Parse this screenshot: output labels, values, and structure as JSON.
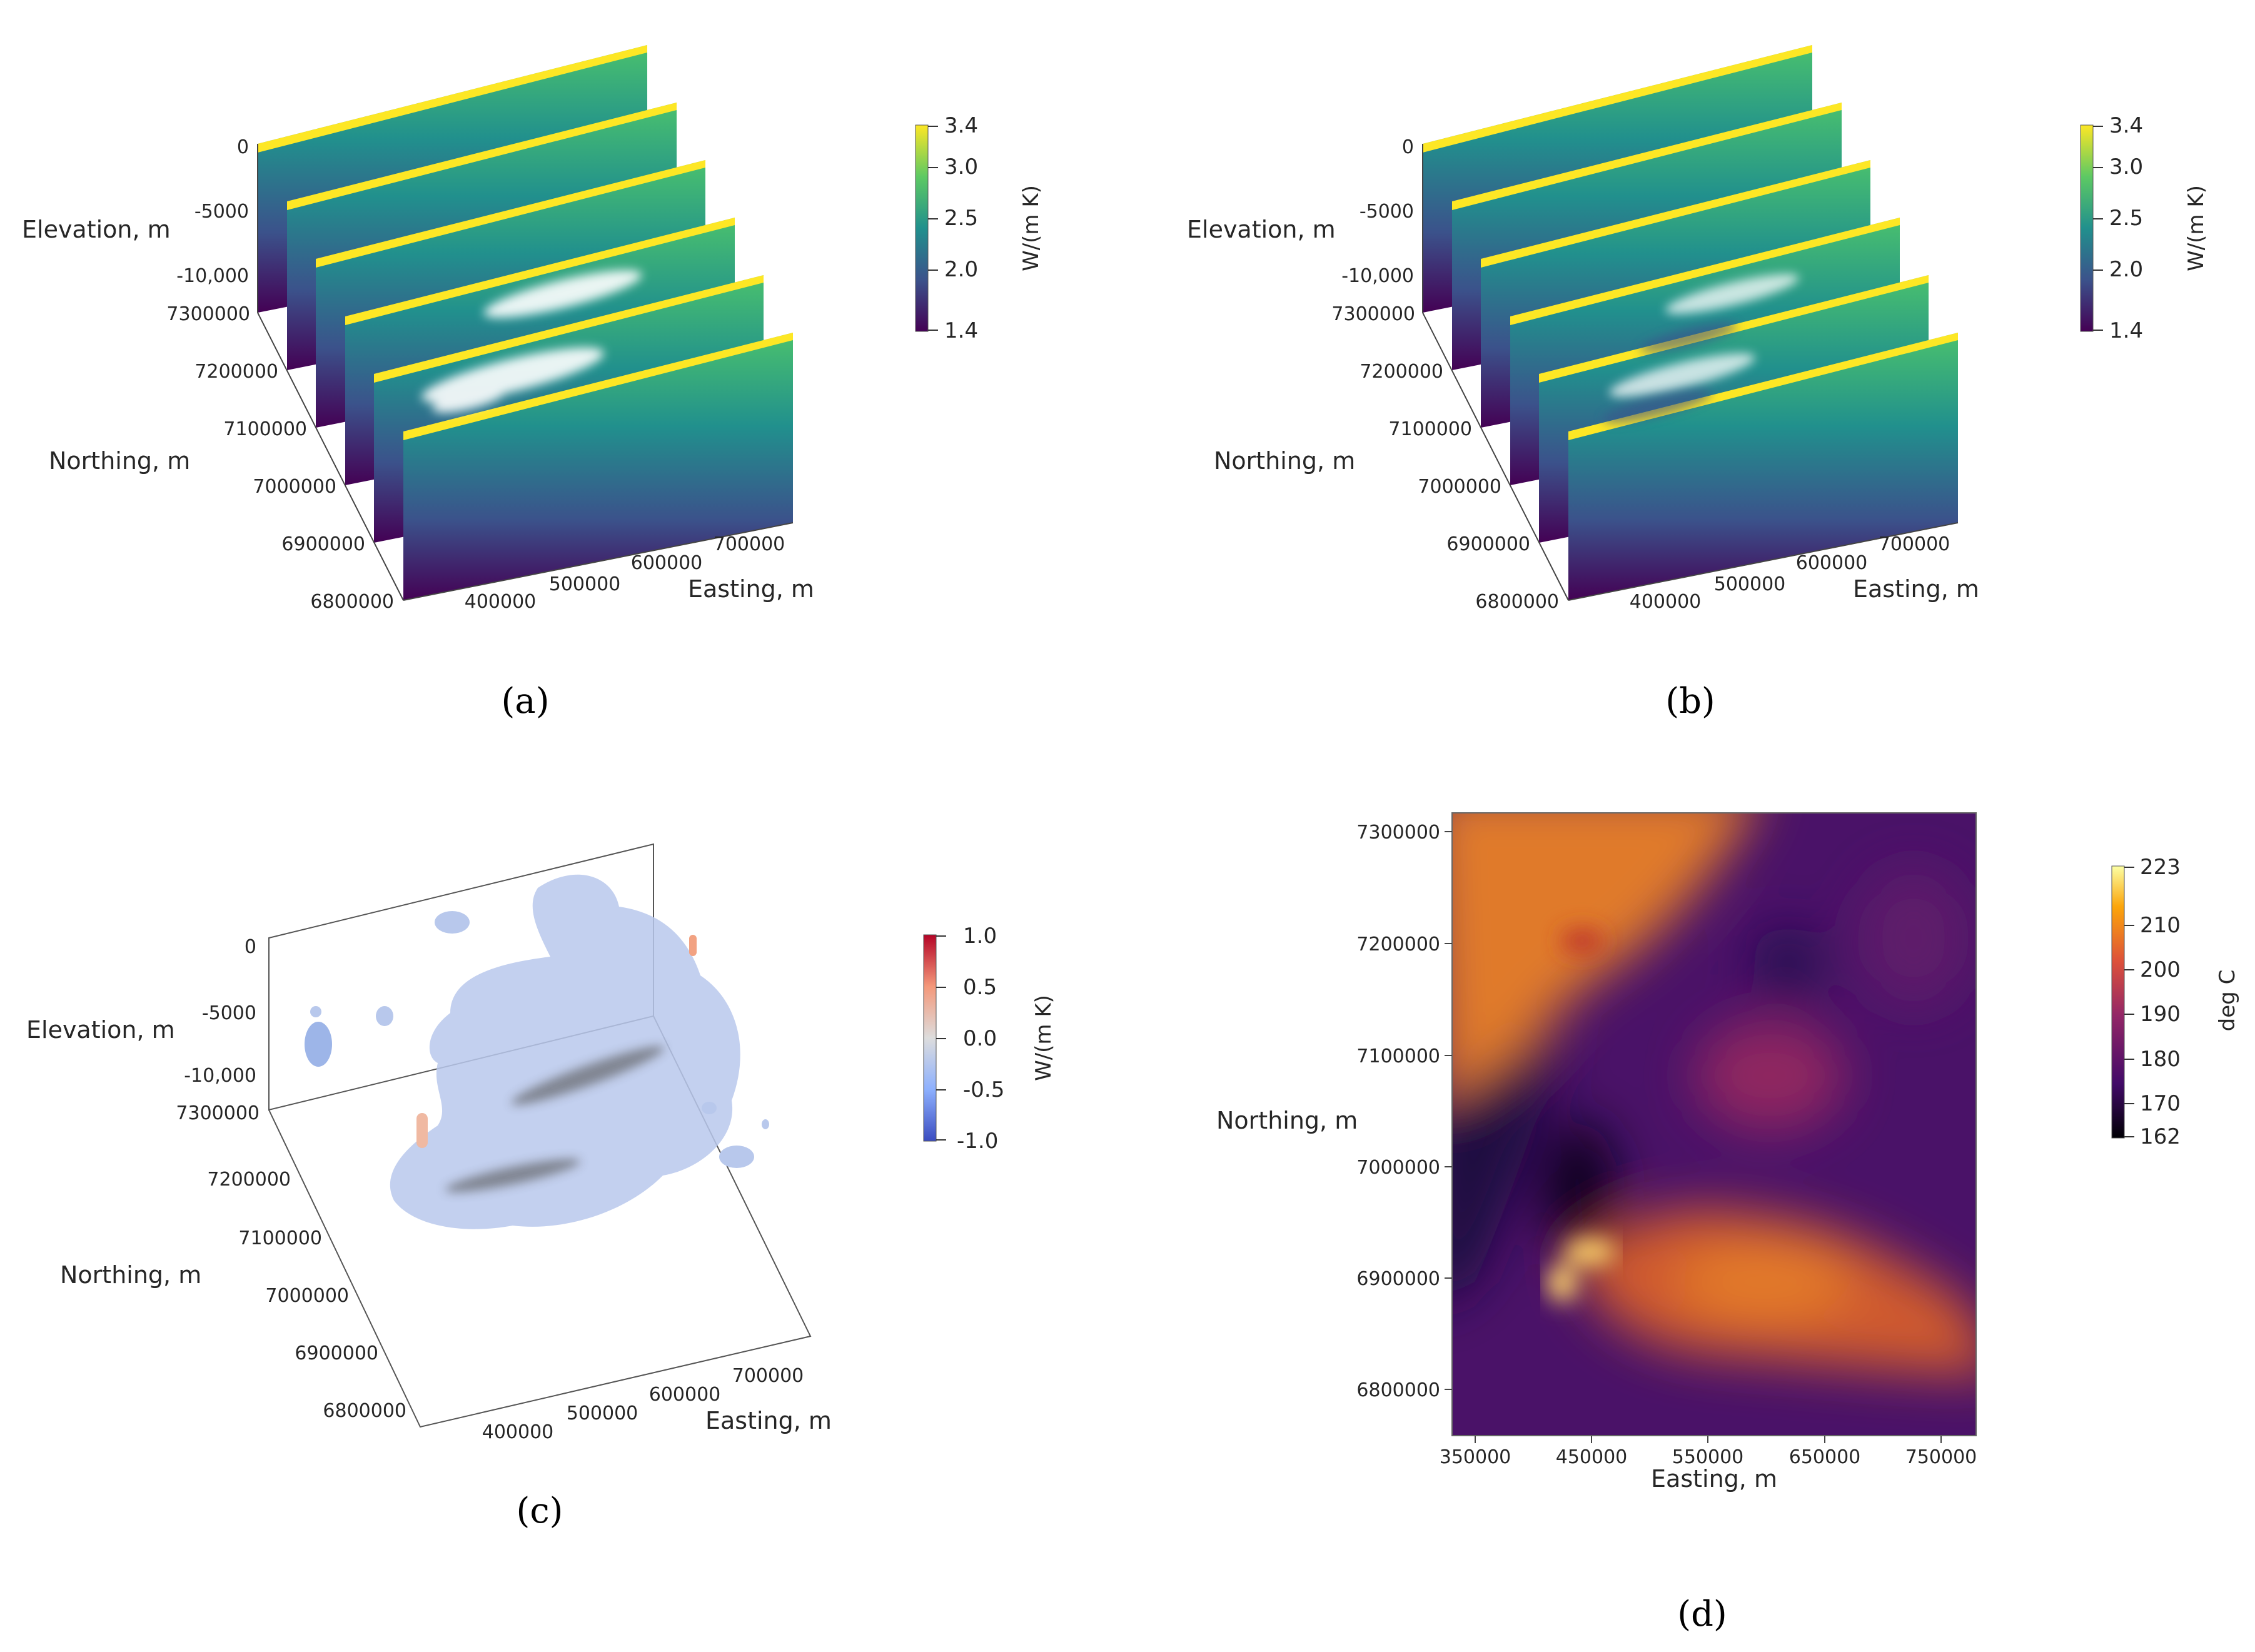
{
  "panels": [
    {
      "id": "a",
      "caption": "(a)",
      "chart_data": {
        "type": "heatmap",
        "view": "3d stacked vertical slices",
        "axes": {
          "z": {
            "label": "Elevation, m",
            "ticks": [
              "0",
              "-5000",
              "-10,000"
            ]
          },
          "y": {
            "label": "Northing, m",
            "ticks": [
              "7300000",
              "7200000",
              "7100000",
              "7000000",
              "6900000",
              "6800000"
            ]
          },
          "x": {
            "label": "Easting, m",
            "ticks": [
              "400000",
              "500000",
              "600000",
              "700000"
            ]
          }
        },
        "slices": 6,
        "colorbar": {
          "label": "W/(m K)",
          "ticks": [
            "3.4",
            "3.0",
            "2.5",
            "2.0",
            "1.4"
          ],
          "range": [
            1.4,
            3.4
          ],
          "colormap": "viridis"
        }
      }
    },
    {
      "id": "b",
      "caption": "(b)",
      "chart_data": {
        "type": "heatmap",
        "view": "3d stacked vertical slices",
        "axes": {
          "z": {
            "label": "Elevation, m",
            "ticks": [
              "0",
              "-5000",
              "-10,000"
            ]
          },
          "y": {
            "label": "Northing, m",
            "ticks": [
              "7300000",
              "7200000",
              "7100000",
              "7000000",
              "6900000",
              "6800000"
            ]
          },
          "x": {
            "label": "Easting, m",
            "ticks": [
              "400000",
              "500000",
              "600000",
              "700000"
            ]
          }
        },
        "slices": 6,
        "colorbar": {
          "label": "W/(m K)",
          "ticks": [
            "3.4",
            "3.0",
            "2.5",
            "2.0",
            "1.4"
          ],
          "range": [
            1.4,
            3.4
          ],
          "colormap": "viridis"
        }
      }
    },
    {
      "id": "c",
      "caption": "(c)",
      "chart_data": {
        "type": "heatmap",
        "view": "3d isosurface",
        "axes": {
          "z": {
            "label": "Elevation, m",
            "ticks": [
              "0",
              "-5000",
              "-10,000"
            ]
          },
          "y": {
            "label": "Northing, m",
            "ticks": [
              "7300000",
              "7200000",
              "7100000",
              "7000000",
              "6900000",
              "6800000"
            ]
          },
          "x": {
            "label": "Easting, m",
            "ticks": [
              "400000",
              "500000",
              "600000",
              "700000"
            ]
          }
        },
        "colorbar": {
          "label": "W/(m K)",
          "ticks": [
            "1.0",
            "0.5",
            "0.0",
            "-0.5",
            "-1.0"
          ],
          "range": [
            -1.0,
            1.0
          ],
          "colormap": "coolwarm"
        }
      }
    },
    {
      "id": "d",
      "caption": "(d)",
      "chart_data": {
        "type": "heatmap",
        "view": "2d map",
        "axes": {
          "y": {
            "label": "Northing, m",
            "ticks": [
              "7300000",
              "7200000",
              "7100000",
              "7000000",
              "6900000",
              "6800000"
            ]
          },
          "x": {
            "label": "Easting, m",
            "ticks": [
              "350000",
              "450000",
              "550000",
              "650000",
              "750000"
            ]
          }
        },
        "colorbar": {
          "label": "deg C",
          "ticks": [
            "223",
            "210",
            "200",
            "190",
            "180",
            "170",
            "162"
          ],
          "range": [
            162,
            223
          ],
          "colormap": "inferno"
        }
      }
    }
  ],
  "colors": {
    "viridis": [
      "#440154",
      "#3b528b",
      "#21908d",
      "#5dc963",
      "#fde725"
    ],
    "coolwarm": [
      "#3b4cc0",
      "#8db0fe",
      "#dddddd",
      "#f4987a",
      "#b40426"
    ],
    "inferno": [
      "#000004",
      "#420a68",
      "#932667",
      "#dd513a",
      "#fca50a",
      "#fcffa4"
    ]
  }
}
